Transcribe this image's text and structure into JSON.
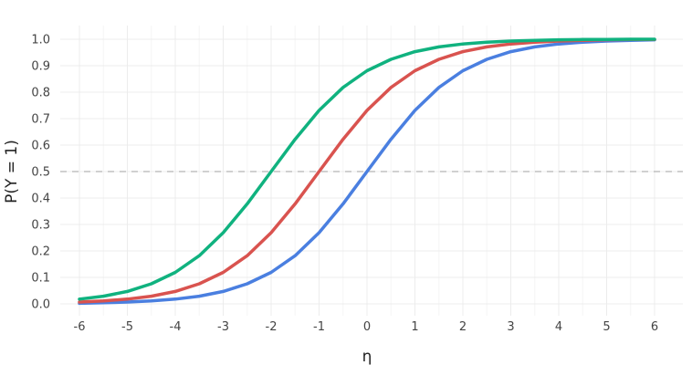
{
  "chart_data": {
    "type": "line",
    "title": "",
    "xlabel": "η",
    "ylabel": "P(Y = 1)",
    "xlim": [
      -6,
      6
    ],
    "ylim": [
      0,
      1
    ],
    "xticks": [
      -6,
      -5,
      -4,
      -3,
      -2,
      -1,
      0,
      1,
      2,
      3,
      4,
      5,
      6
    ],
    "yticks": [
      0.0,
      0.1,
      0.2,
      0.3,
      0.4,
      0.5,
      0.6,
      0.7,
      0.8,
      0.9,
      1.0
    ],
    "grid": true,
    "legend": "none",
    "reference_line": {
      "y": 0.5,
      "style": "dashed",
      "color": "#c0c0c0"
    },
    "series": [
      {
        "color": "#4a7fe0",
        "x": [
          -6,
          -5.5,
          -5,
          -4.5,
          -4,
          -3.5,
          -3,
          -2.5,
          -2,
          -1.5,
          -1,
          -0.5,
          0,
          0.5,
          1,
          1.5,
          2,
          2.5,
          3,
          3.5,
          4,
          4.5,
          5,
          5.5,
          6
        ],
        "y": [
          0.002,
          0.004,
          0.007,
          0.011,
          0.018,
          0.029,
          0.047,
          0.076,
          0.119,
          0.182,
          0.269,
          0.378,
          0.5,
          0.622,
          0.731,
          0.818,
          0.881,
          0.924,
          0.953,
          0.971,
          0.982,
          0.989,
          0.993,
          0.996,
          0.998
        ]
      },
      {
        "color": "#d9534f",
        "x": [
          -6,
          -5.5,
          -5,
          -4.5,
          -4,
          -3.5,
          -3,
          -2.5,
          -2,
          -1.5,
          -1,
          -0.5,
          0,
          0.5,
          1,
          1.5,
          2,
          2.5,
          3,
          3.5,
          4,
          4.5,
          5,
          5.5,
          6
        ],
        "y": [
          0.007,
          0.011,
          0.018,
          0.029,
          0.047,
          0.076,
          0.119,
          0.182,
          0.269,
          0.378,
          0.5,
          0.622,
          0.731,
          0.818,
          0.881,
          0.924,
          0.953,
          0.971,
          0.982,
          0.989,
          0.993,
          0.996,
          0.998,
          0.999,
          0.999
        ]
      },
      {
        "color": "#10b27f",
        "x": [
          -6,
          -5.5,
          -5,
          -4.5,
          -4,
          -3.5,
          -3,
          -2.5,
          -2,
          -1.5,
          -1,
          -0.5,
          0,
          0.5,
          1,
          1.5,
          2,
          2.5,
          3,
          3.5,
          4,
          4.5,
          5,
          5.5,
          6
        ],
        "y": [
          0.018,
          0.029,
          0.047,
          0.076,
          0.119,
          0.182,
          0.269,
          0.378,
          0.5,
          0.622,
          0.731,
          0.818,
          0.881,
          0.924,
          0.953,
          0.971,
          0.982,
          0.989,
          0.993,
          0.996,
          0.998,
          0.999,
          0.999,
          1.0,
          1.0
        ]
      }
    ]
  }
}
